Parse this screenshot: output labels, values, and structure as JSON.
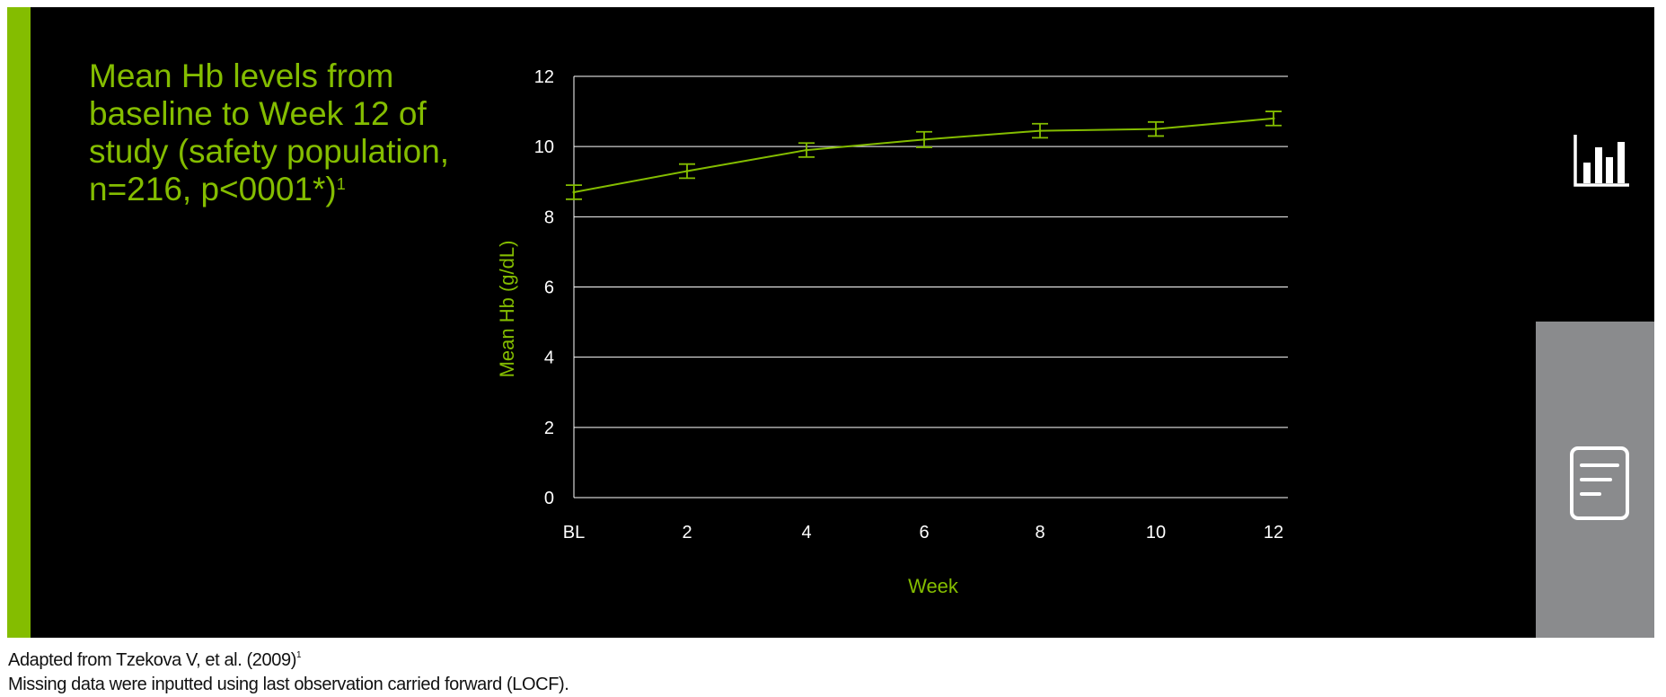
{
  "colors": {
    "accent": "#84bd00",
    "panel": "#000000",
    "side_panel": "#8a8b8d",
    "text": "#ffffff",
    "footnote": "#111111"
  },
  "title": {
    "text": "Mean Hb levels from baseline to Week 12 of study (safety population, n=216, p<0001*)",
    "sup": "1"
  },
  "footnotes": [
    {
      "text": "Adapted from Tzekova V, et al. (2009)",
      "sup": "1"
    },
    {
      "text": "Missing data were inputted using last observation carried forward (LOCF).",
      "sup": ""
    }
  ],
  "side_icons": [
    "bar-chart-icon",
    "document-icon"
  ],
  "chart_data": {
    "type": "line",
    "title": "",
    "xlabel": "Week",
    "ylabel": "Mean Hb (g/dL)",
    "categories": [
      "BL",
      "2",
      "4",
      "6",
      "8",
      "10",
      "12"
    ],
    "series": [
      {
        "values": [
          8.7,
          9.3,
          9.9,
          10.2,
          10.45,
          10.5,
          10.8
        ],
        "error": [
          0.2,
          0.2,
          0.2,
          0.22,
          0.2,
          0.2,
          0.2
        ]
      }
    ],
    "ylim": [
      0,
      12
    ],
    "yticks": [
      0,
      2,
      4,
      6,
      8,
      10,
      12
    ],
    "grid": true,
    "legend": "none"
  }
}
